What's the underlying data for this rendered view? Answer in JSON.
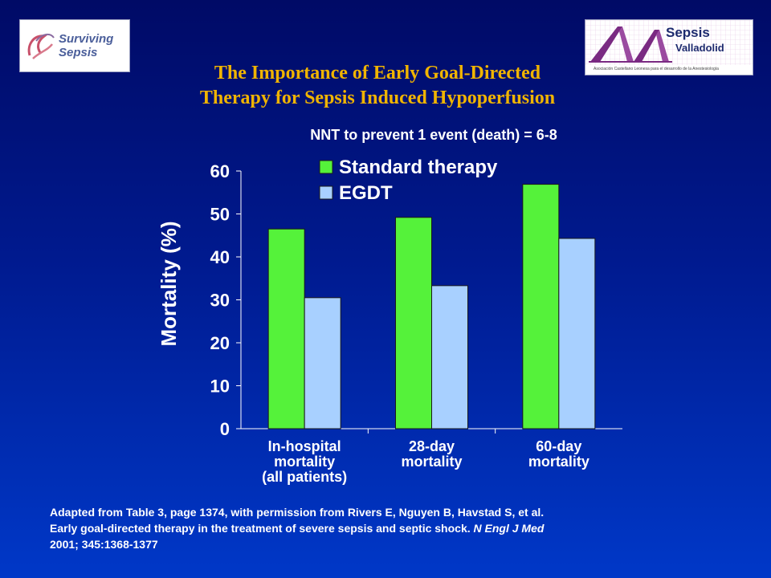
{
  "logos": {
    "left": {
      "line1": "Surviving",
      "line2": "Sepsis"
    },
    "right": {
      "line1": "Sepsis",
      "line2": "Valladolid",
      "tagline": "Asociación Castellano Leonesa para el desarrollo de la Anestesiología"
    }
  },
  "title": {
    "line1": "The Importance of Early Goal-Directed",
    "line2": "Therapy for Sepsis Induced Hypoperfusion"
  },
  "subtitle": "NNT to prevent 1 event (death) = 6-8",
  "chart_data": {
    "type": "bar",
    "title": "",
    "ylabel": "Mortality (%)",
    "xlabel": "",
    "ylim": [
      0,
      60
    ],
    "yticks": [
      0,
      10,
      20,
      30,
      40,
      50,
      60
    ],
    "grid": false,
    "legend_position": "top",
    "categories": [
      [
        "In-hospital",
        "mortality",
        "(all patients)"
      ],
      [
        "28-day",
        "mortality"
      ],
      [
        "60-day",
        "mortality"
      ]
    ],
    "series": [
      {
        "name": "Standard therapy",
        "color": "#55f23a",
        "values": [
          46.5,
          49.2,
          56.9
        ]
      },
      {
        "name": "EGDT",
        "color": "#a8d0ff",
        "values": [
          30.5,
          33.3,
          44.3
        ]
      }
    ]
  },
  "footnote": {
    "line1": "Adapted from Table 3, page 1374, with permission from Rivers E, Nguyen B, Havstad S, et al.",
    "line2_plain": "Early goal-directed therapy in the treatment of severe sepsis and septic shock. ",
    "line2_italic": "N Engl J Med",
    "line3": "2001; 345:1368-1377"
  }
}
